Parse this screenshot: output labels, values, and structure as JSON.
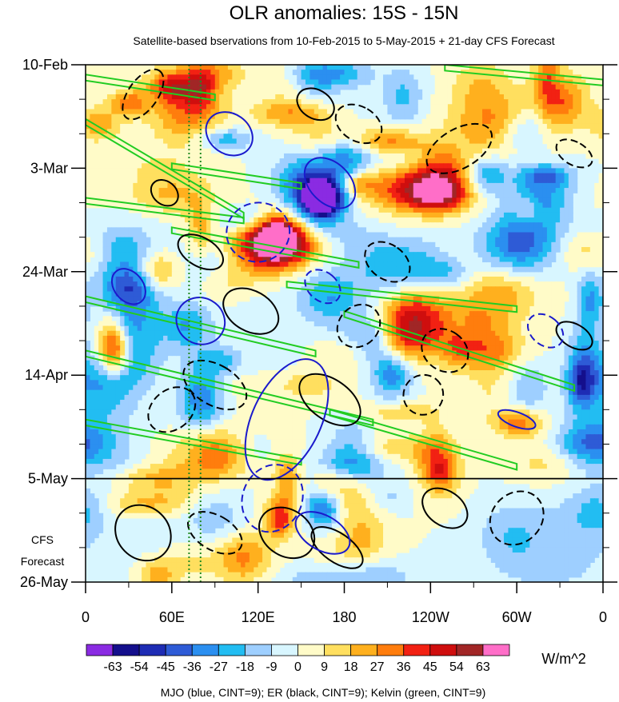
{
  "chart_data": {
    "type": "heatmap",
    "title": "OLR anomalies: 15S - 15N",
    "subtitle": "Satellite-based bservations from 10-Feb-2015 to 5-May-2015 + 21-day CFS Forecast",
    "x_ticks": [
      "0",
      "60E",
      "120E",
      "180",
      "120W",
      "60W",
      "0"
    ],
    "x_tick_values": [
      0,
      60,
      120,
      180,
      240,
      300,
      360
    ],
    "x_range": [
      0,
      360
    ],
    "y_ticks": [
      "10-Feb",
      "3-Mar",
      "24-Mar",
      "14-Apr",
      "5-May",
      "26-May"
    ],
    "y_tick_days": [
      0,
      21,
      42,
      63,
      84,
      105
    ],
    "y_range_days": [
      0,
      105
    ],
    "observation_end_label": "5-May",
    "forecast_label_lines": [
      "CFS",
      "Forecast"
    ],
    "units": "W/m^2",
    "colorbar": {
      "levels": [
        "-63",
        "-54",
        "-45",
        "-36",
        "-27",
        "-18",
        "-9",
        "0",
        "9",
        "18",
        "27",
        "36",
        "45",
        "54",
        "63"
      ],
      "colors": [
        "#8a2be2",
        "#140f8c",
        "#1e2cb4",
        "#2e5bd6",
        "#2b8ff0",
        "#22bdf2",
        "#9ecfff",
        "#d8f6ff",
        "#fffbc8",
        "#ffdf5f",
        "#ffb01e",
        "#ff7d0d",
        "#f22113",
        "#cf0e0e",
        "#a12626",
        "#ff6ec8"
      ]
    },
    "contour_legend": "MJO (blue, CINT=9); ER (black, CINT=9); Kelvin (green, CINT=9)",
    "series": [
      {
        "name": "MJO",
        "color": "#1a1acc",
        "cint": 9
      },
      {
        "name": "ER",
        "color": "#000000",
        "cint": 9
      },
      {
        "name": "Kelvin",
        "color": "#22cc22",
        "cint": 9
      }
    ],
    "reference_lines": [
      {
        "type": "vertical",
        "lon": 72,
        "style": "dotted",
        "color": "#228b22"
      },
      {
        "type": "vertical",
        "lon": 80,
        "style": "dotted",
        "color": "#228b22"
      },
      {
        "type": "horizontal",
        "day": 84,
        "style": "solid",
        "color": "#000000"
      }
    ]
  }
}
